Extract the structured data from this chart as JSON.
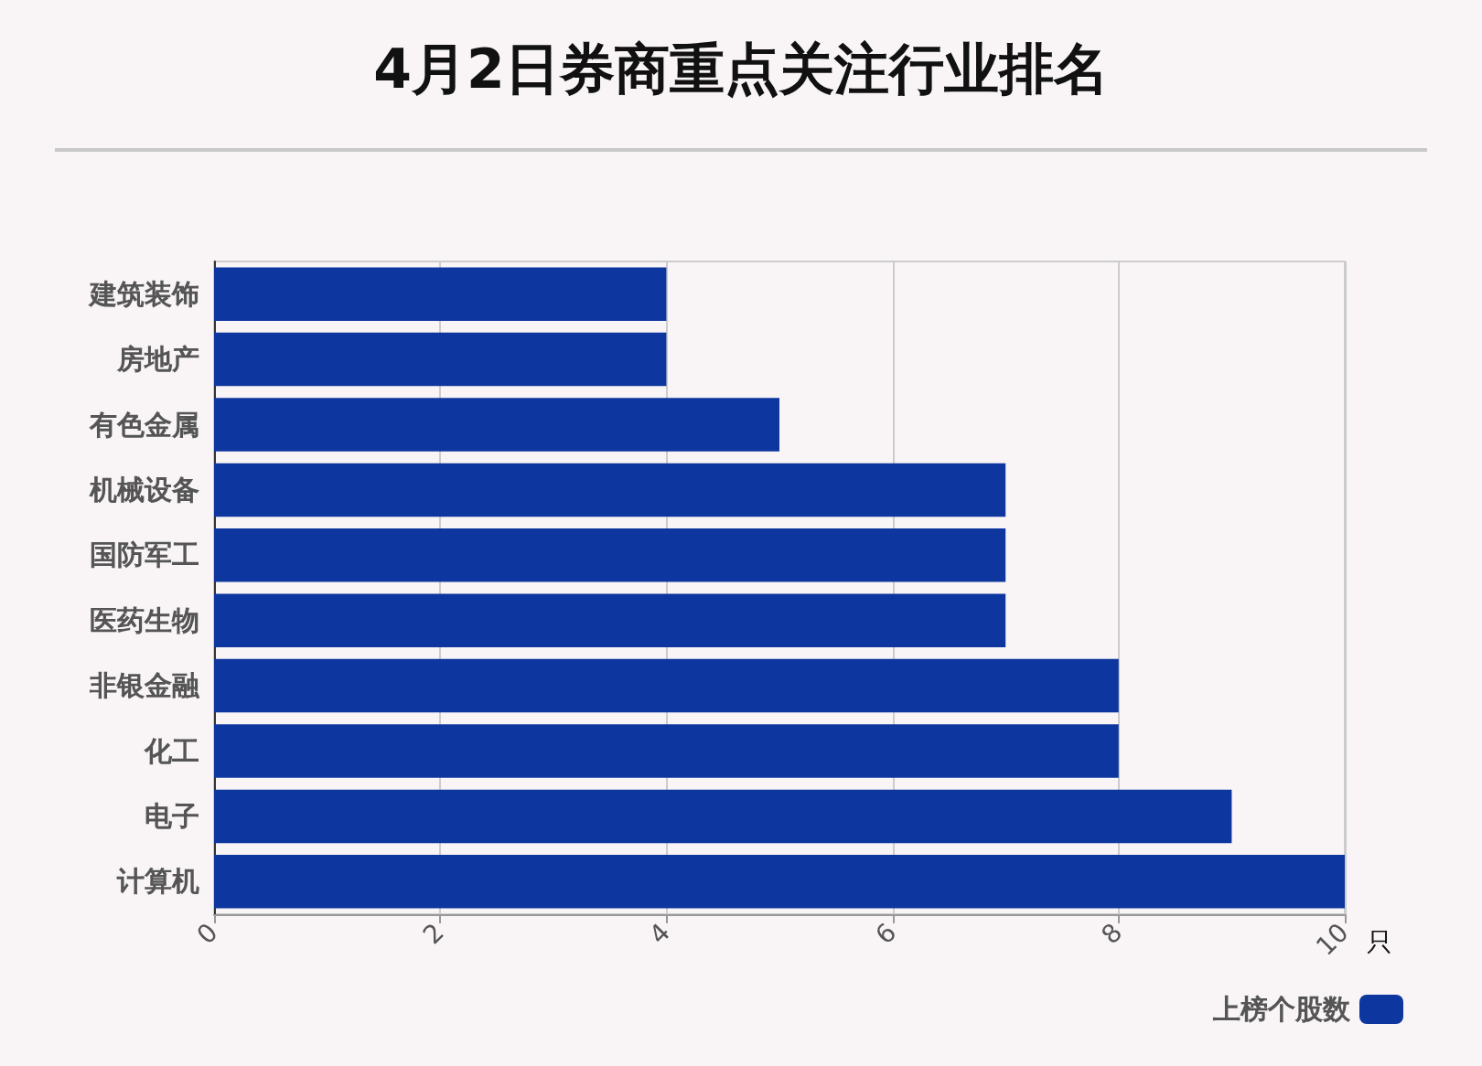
{
  "chart_data": {
    "type": "bar",
    "title": "4月2日券商重点关注行业排名",
    "orientation": "horizontal",
    "xlabel": "只",
    "categories": [
      "建筑装饰",
      "房地产",
      "有色金属",
      "机械设备",
      "国防军工",
      "医药生物",
      "非银金融",
      "化工",
      "电子",
      "计算机"
    ],
    "series": [
      {
        "name": "上榜个股数",
        "color": "#0d369f",
        "values": [
          4,
          4,
          5,
          7,
          7,
          7,
          8,
          8,
          9,
          10
        ]
      }
    ],
    "xlim": [
      0,
      10
    ],
    "xticks": [
      0,
      2,
      4,
      6,
      8,
      10
    ],
    "grid": "x",
    "legend": "bottom right"
  }
}
